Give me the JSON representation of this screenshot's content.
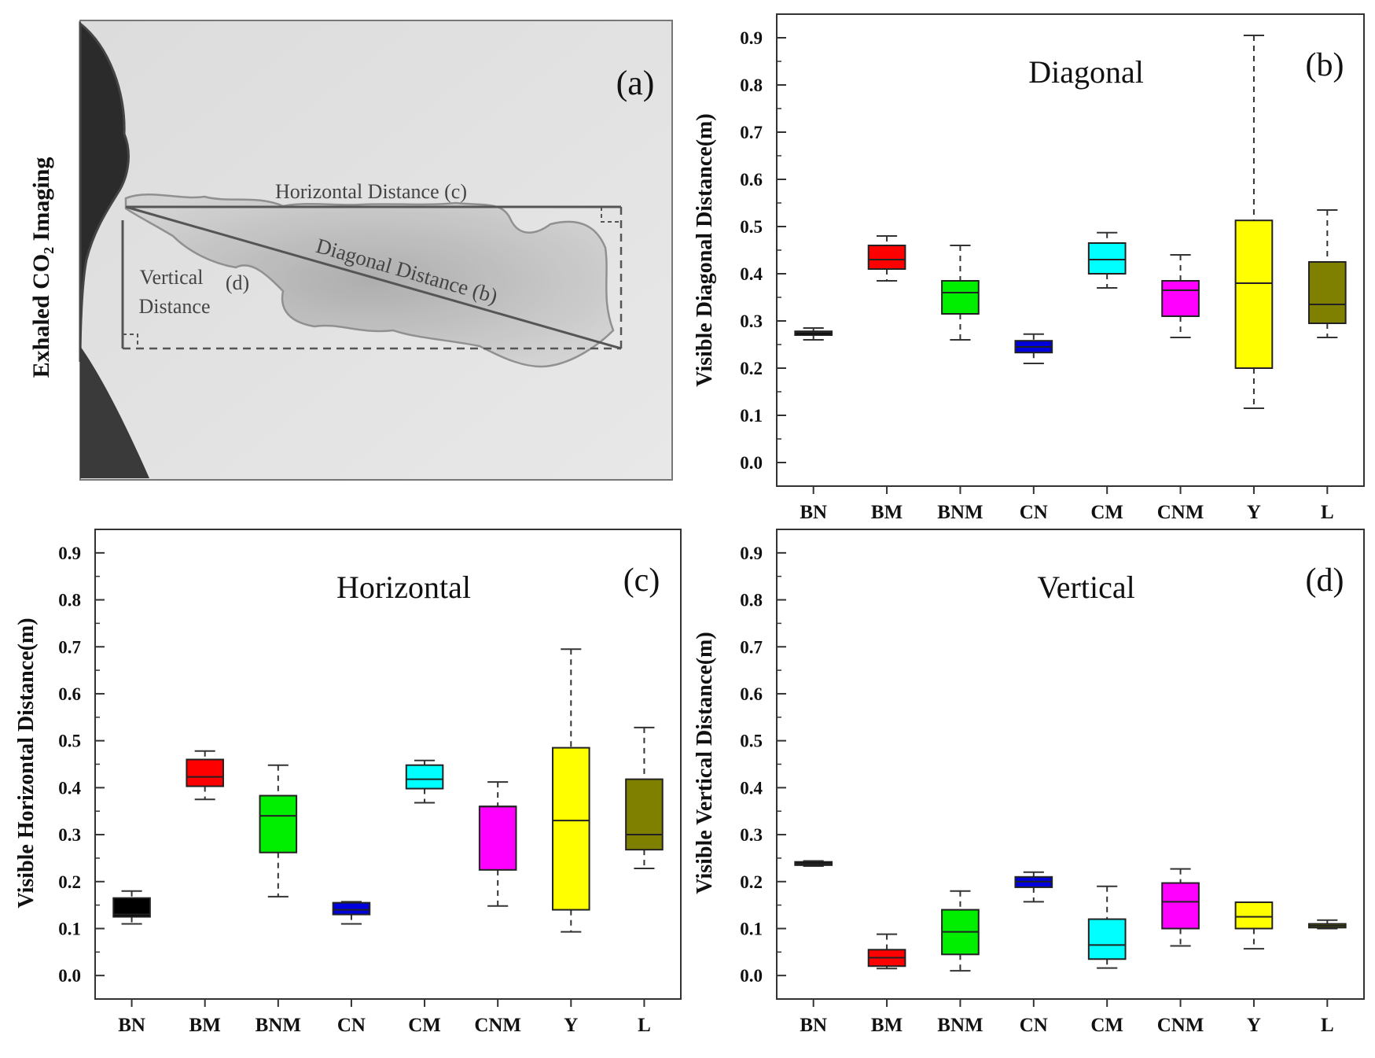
{
  "panel_a": {
    "side_label": "Exhaled CO₂ Imaging",
    "panel_label": "(a)",
    "horizontal_label": "Horizontal Distance (c)",
    "diagonal_label": "Diagonal Distance (b)",
    "vertical_label_line1": "Vertical",
    "vertical_label_line2": "Distance",
    "vertical_letter": "(d)"
  },
  "chart_data": [
    {
      "id": "b",
      "type": "box",
      "panel_label": "(b)",
      "title": "Diagonal",
      "ylabel": "Visible Diagonal Distance(m)",
      "xlabel": "",
      "ylim": [
        -0.05,
        0.95
      ],
      "yticks": [
        "0.0",
        "0.1",
        "0.2",
        "0.3",
        "0.4",
        "0.5",
        "0.6",
        "0.7",
        "0.8",
        "0.9"
      ],
      "grid": false,
      "categories": [
        "BN",
        "BM",
        "BNM",
        "CN",
        "CM",
        "CNM",
        "Y",
        "L"
      ],
      "colors": [
        "#000000",
        "#ff0000",
        "#00ee00",
        "#0000dd",
        "#00ffff",
        "#ff00ff",
        "#ffff00",
        "#808000"
      ],
      "boxes": [
        {
          "min": 0.26,
          "q1": 0.27,
          "median": 0.275,
          "q3": 0.278,
          "max": 0.285
        },
        {
          "min": 0.385,
          "q1": 0.41,
          "median": 0.43,
          "q3": 0.46,
          "max": 0.48
        },
        {
          "min": 0.26,
          "q1": 0.315,
          "median": 0.36,
          "q3": 0.385,
          "max": 0.46
        },
        {
          "min": 0.21,
          "q1": 0.233,
          "median": 0.245,
          "q3": 0.258,
          "max": 0.272
        },
        {
          "min": 0.37,
          "q1": 0.4,
          "median": 0.43,
          "q3": 0.465,
          "max": 0.487
        },
        {
          "min": 0.265,
          "q1": 0.31,
          "median": 0.365,
          "q3": 0.385,
          "max": 0.44
        },
        {
          "min": 0.115,
          "q1": 0.2,
          "median": 0.38,
          "q3": 0.513,
          "max": 0.905
        },
        {
          "min": 0.265,
          "q1": 0.295,
          "median": 0.335,
          "q3": 0.425,
          "max": 0.535
        }
      ]
    },
    {
      "id": "c",
      "type": "box",
      "panel_label": "(c)",
      "title": "Horizontal",
      "ylabel": "Visible Horizontal Distance(m)",
      "xlabel": "",
      "ylim": [
        -0.05,
        0.95
      ],
      "yticks": [
        "0.0",
        "0.1",
        "0.2",
        "0.3",
        "0.4",
        "0.5",
        "0.6",
        "0.7",
        "0.8",
        "0.9"
      ],
      "grid": false,
      "categories": [
        "BN",
        "BM",
        "BNM",
        "CN",
        "CM",
        "CNM",
        "Y",
        "L"
      ],
      "colors": [
        "#000000",
        "#ff0000",
        "#00ee00",
        "#0000dd",
        "#00ffff",
        "#ff00ff",
        "#ffff00",
        "#808000"
      ],
      "boxes": [
        {
          "min": 0.11,
          "q1": 0.125,
          "median": 0.13,
          "q3": 0.165,
          "max": 0.18
        },
        {
          "min": 0.375,
          "q1": 0.403,
          "median": 0.423,
          "q3": 0.46,
          "max": 0.478
        },
        {
          "min": 0.168,
          "q1": 0.262,
          "median": 0.34,
          "q3": 0.383,
          "max": 0.448
        },
        {
          "min": 0.11,
          "q1": 0.13,
          "median": 0.14,
          "q3": 0.155,
          "max": 0.157
        },
        {
          "min": 0.368,
          "q1": 0.398,
          "median": 0.418,
          "q3": 0.448,
          "max": 0.458
        },
        {
          "min": 0.148,
          "q1": 0.225,
          "median": 0.36,
          "q3": 0.36,
          "max": 0.412
        },
        {
          "min": 0.093,
          "q1": 0.14,
          "median": 0.33,
          "q3": 0.485,
          "max": 0.695
        },
        {
          "min": 0.228,
          "q1": 0.268,
          "median": 0.3,
          "q3": 0.418,
          "max": 0.528
        }
      ]
    },
    {
      "id": "d",
      "type": "box",
      "panel_label": "(d)",
      "title": "Vertical",
      "ylabel": "Visible Vertical Distance(m)",
      "xlabel": "",
      "ylim": [
        -0.05,
        0.95
      ],
      "yticks": [
        "0.0",
        "0.1",
        "0.2",
        "0.3",
        "0.4",
        "0.5",
        "0.6",
        "0.7",
        "0.8",
        "0.9"
      ],
      "grid": false,
      "categories": [
        "BN",
        "BM",
        "BNM",
        "CN",
        "CM",
        "CNM",
        "Y",
        "L"
      ],
      "colors": [
        "#000000",
        "#ff0000",
        "#00ee00",
        "#0000dd",
        "#00ffff",
        "#ff00ff",
        "#ffff00",
        "#808000"
      ],
      "boxes": [
        {
          "min": 0.233,
          "q1": 0.235,
          "median": 0.238,
          "q3": 0.242,
          "max": 0.244
        },
        {
          "min": 0.015,
          "q1": 0.02,
          "median": 0.038,
          "q3": 0.055,
          "max": 0.088
        },
        {
          "min": 0.01,
          "q1": 0.045,
          "median": 0.093,
          "q3": 0.14,
          "max": 0.18
        },
        {
          "min": 0.157,
          "q1": 0.188,
          "median": 0.2,
          "q3": 0.21,
          "max": 0.22
        },
        {
          "min": 0.016,
          "q1": 0.035,
          "median": 0.065,
          "q3": 0.12,
          "max": 0.19
        },
        {
          "min": 0.063,
          "q1": 0.1,
          "median": 0.157,
          "q3": 0.197,
          "max": 0.227
        },
        {
          "min": 0.057,
          "q1": 0.1,
          "median": 0.125,
          "q3": 0.156,
          "max": 0.156
        },
        {
          "min": 0.1,
          "q1": 0.102,
          "median": 0.106,
          "q3": 0.11,
          "max": 0.118
        }
      ]
    }
  ]
}
